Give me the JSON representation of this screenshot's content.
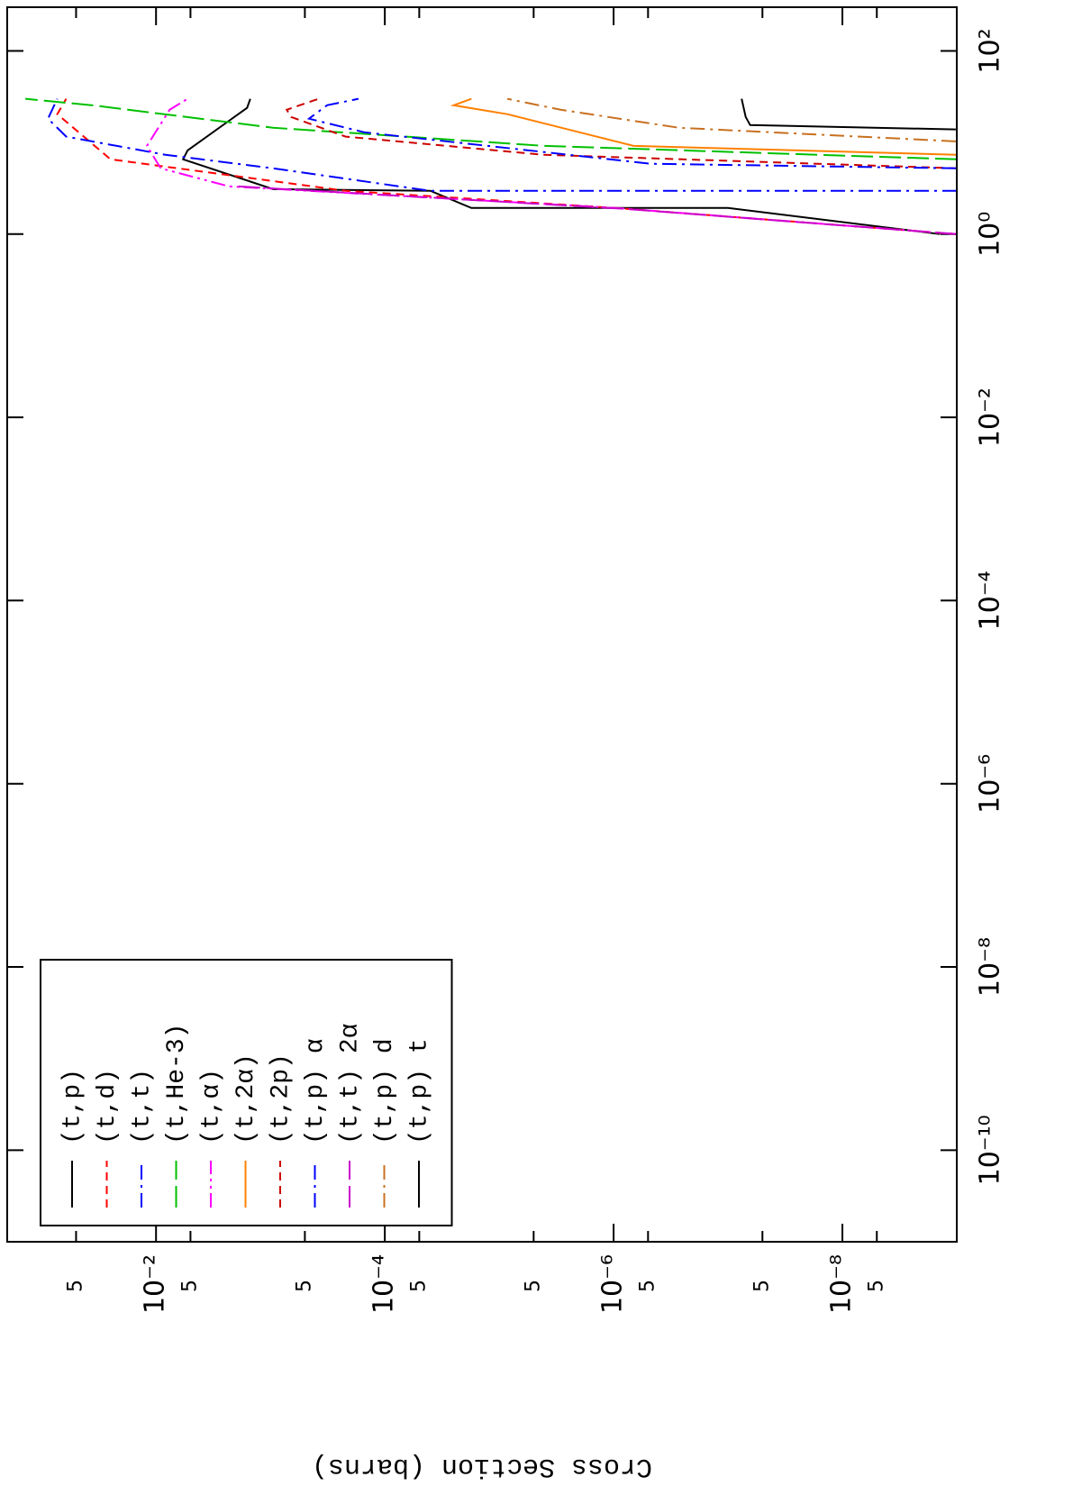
{
  "chart_data": {
    "type": "line",
    "y_label": "Cross Section (barns)",
    "xscale": "log",
    "yscale": "log",
    "xlim": [
      1e-11,
      300
    ],
    "ylim": [
      1e-09,
      0.2
    ],
    "xticks": [
      {
        "value": 1e-10,
        "label": "10⁻¹⁰"
      },
      {
        "value": 1e-08,
        "label": "10⁻⁸"
      },
      {
        "value": 1e-06,
        "label": "10⁻⁶"
      },
      {
        "value": 0.0001,
        "label": "10⁻⁴"
      },
      {
        "value": 0.01,
        "label": "10⁻²"
      },
      {
        "value": 1,
        "label": "10⁰"
      },
      {
        "value": 100,
        "label": "10²"
      }
    ],
    "yticks": [
      {
        "value": 0.05,
        "label": "5"
      },
      {
        "value": 0.01,
        "label": "10⁻²"
      },
      {
        "value": 0.005,
        "label": "5"
      },
      {
        "value": 0.0005,
        "label": "5"
      },
      {
        "value": 0.0001,
        "label": "10⁻⁴"
      },
      {
        "value": 5e-05,
        "label": "5"
      },
      {
        "value": 5e-06,
        "label": "5"
      },
      {
        "value": 1e-06,
        "label": "10⁻⁶"
      },
      {
        "value": 5e-07,
        "label": "5"
      },
      {
        "value": 5e-08,
        "label": "5"
      },
      {
        "value": 1e-08,
        "label": "10⁻⁸"
      },
      {
        "value": 5e-09,
        "label": "5"
      }
    ],
    "legend": "upper left",
    "series": [
      {
        "name": "(t,p)",
        "color": "#000000",
        "style": "solid",
        "x": [
          1,
          1.93,
          1.93,
          2.97,
          3.1,
          6.56,
          8.2,
          23.9,
          30
        ],
        "values": [
          1.4e-09,
          1e-07,
          1.75e-05,
          4e-05,
          0.00095,
          0.0058,
          0.0053,
          0.0016,
          0.0015
        ]
      },
      {
        "name": "(t,d)",
        "color": "#ff0000",
        "style": "dashed",
        "x": [
          1,
          1.93,
          2.97,
          6.56,
          20.4,
          30
        ],
        "values": [
          1e-09,
          9.6e-07,
          0.00022,
          0.025,
          0.073,
          0.061
        ]
      },
      {
        "name": "(t,t)",
        "color": "#0000ff",
        "style": "dashdot",
        "x": [
          2.97,
          2.97,
          5.23,
          7.35,
          11.6,
          18.2,
          30
        ],
        "values": [
          1e-09,
          4e-05,
          0.00095,
          0.0083,
          0.061,
          0.088,
          0.073
        ]
      },
      {
        "name": "(t,He-3)",
        "color": "#00c000",
        "style": "longdash",
        "x": [
          6.56,
          9.2,
          14.5,
          25.5,
          30
        ],
        "values": [
          1e-09,
          4.1e-06,
          0.00095,
          0.036,
          0.139
        ]
      },
      {
        "name": "(t,α)",
        "color": "#ff00ff",
        "style": "dashdotdot",
        "x": [
          1,
          1.93,
          3.32,
          5.23,
          9.2,
          22.8,
          30
        ],
        "values": [
          1e-09,
          9.6e-07,
          0.0023,
          0.0091,
          0.012,
          0.0076,
          0.0053
        ]
      },
      {
        "name": "(t,2α)",
        "color": "#ff8000",
        "style": "solid",
        "x": [
          7.35,
          9.2,
          20.4,
          25.5,
          30
        ],
        "values": [
          1e-09,
          6.7e-07,
          8.5e-06,
          2.5e-05,
          1.75e-05
        ]
      },
      {
        "name": "(t,2p)",
        "color": "#cc0000",
        "style": "dashed",
        "x": [
          5.23,
          7.35,
          11.6,
          19,
          22.8,
          30
        ],
        "values": [
          1e-09,
          4.1e-06,
          0.00022,
          0.00066,
          0.00072,
          0.00038
        ]
      },
      {
        "name": "(t,p) α",
        "color": "#0000ff",
        "style": "dashdot",
        "x": [
          5.23,
          5.86,
          12.9,
          18.2,
          25.5,
          30
        ],
        "values": [
          1.02e-09,
          4.7e-07,
          0.00015,
          0.00046,
          0.00032,
          0.00017
        ]
      },
      {
        "name": "(t,t) 2α",
        "color": "#cc00cc",
        "style": "longdash",
        "x": [
          1,
          1.89,
          2.84,
          3.32
        ],
        "values": [
          1e-09,
          8.1e-07,
          0.00022,
          0.00195
        ]
      },
      {
        "name": "(t,p) d",
        "color": "#c87020",
        "style": "dashdot",
        "x": [
          10.3,
          14.5,
          22.8,
          30
        ],
        "values": [
          1.02e-09,
          2.7e-07,
          2.9e-06,
          8.5e-06
        ]
      },
      {
        "name": "(t,p) t",
        "color": "#000000",
        "style": "solid",
        "x": [
          13.9,
          15.5,
          19,
          30
        ],
        "values": [
          1.02e-09,
          6.4e-08,
          7e-08,
          7.6e-08
        ]
      }
    ]
  }
}
